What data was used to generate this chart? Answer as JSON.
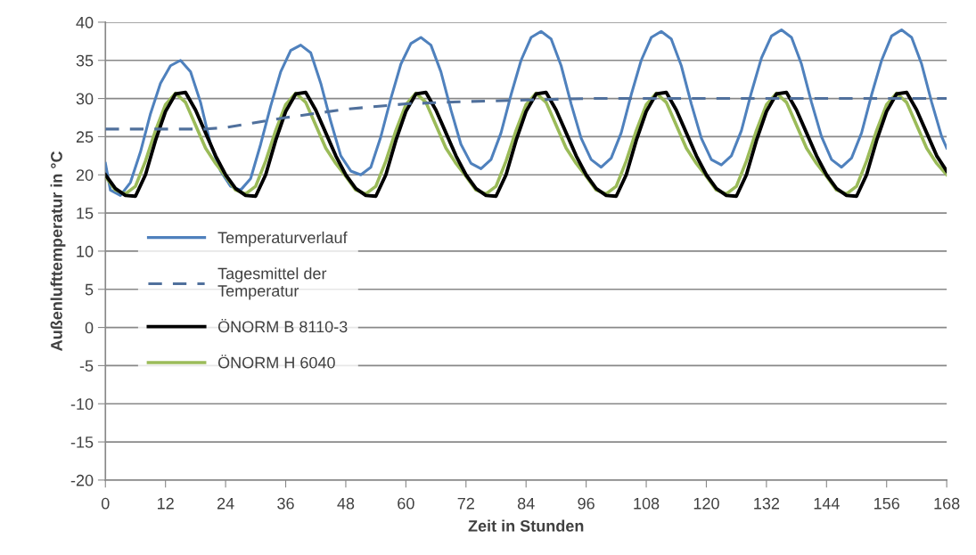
{
  "chart_data": {
    "type": "line",
    "xlabel": "Zeit in Stunden",
    "ylabel": "Außenlufttemperatur in °C",
    "xlim": [
      0,
      168
    ],
    "xticks": [
      0,
      12,
      24,
      36,
      48,
      60,
      72,
      84,
      96,
      108,
      120,
      132,
      144,
      156,
      168
    ],
    "ylim": [
      -20,
      40
    ],
    "yticks": [
      -20,
      -15,
      -10,
      -5,
      0,
      5,
      10,
      15,
      20,
      25,
      30,
      35,
      40
    ],
    "grid": "y",
    "legend": "center left",
    "marker": "none",
    "series": [
      {
        "name": "Temperaturverlauf",
        "color": "#4f81bd",
        "line_style": "solid",
        "x": [
          0,
          1,
          3,
          5,
          7,
          9,
          11,
          13,
          15,
          17,
          19,
          21,
          23,
          25,
          27,
          29,
          31,
          33,
          35,
          37,
          39,
          41,
          43,
          45,
          47,
          49,
          51,
          53,
          55,
          57,
          59,
          61,
          63,
          65,
          67,
          69,
          71,
          73,
          75,
          77,
          79,
          81,
          83,
          85,
          87,
          89,
          91,
          93,
          95,
          97,
          99,
          101,
          103,
          105,
          107,
          109,
          111,
          113,
          115,
          117,
          119,
          121,
          123,
          125,
          127,
          129,
          131,
          133,
          135,
          137,
          139,
          141,
          143,
          145,
          147,
          149,
          151,
          153,
          155,
          157,
          159,
          161,
          163,
          165,
          167,
          168
        ],
        "values": [
          21.5,
          18,
          17.3,
          19,
          23,
          28,
          32,
          34.3,
          35,
          33.5,
          29.5,
          24,
          20.5,
          18.5,
          18,
          19.5,
          24,
          29,
          33.5,
          36.3,
          37,
          36,
          32,
          27,
          22.5,
          20.5,
          20,
          21,
          25,
          30,
          34.5,
          37.2,
          38,
          37,
          33.5,
          28.5,
          24,
          21.5,
          20.8,
          22,
          25.5,
          30.5,
          35,
          38,
          38.8,
          37.8,
          34.3,
          29.3,
          24.8,
          22,
          21,
          22.2,
          25.5,
          30.5,
          35,
          38,
          38.8,
          37.8,
          34.3,
          29.3,
          24.8,
          22,
          21.3,
          22.5,
          25.8,
          30.8,
          35.3,
          38.2,
          39,
          38,
          34.5,
          29.5,
          25,
          22,
          21,
          22.2,
          25.5,
          30.5,
          35,
          38.2,
          39,
          38,
          34.5,
          29.5,
          25,
          23.5
        ]
      },
      {
        "name": "Tagesmittel der\nTemperatur",
        "color": "#50709c",
        "line_style": "dashed",
        "x": [
          0,
          20,
          24,
          36,
          48,
          60,
          72,
          84,
          96,
          168
        ],
        "values": [
          26,
          26,
          26.2,
          27.5,
          28.6,
          29.3,
          29.6,
          29.8,
          30,
          30
        ]
      },
      {
        "name": "ÖNORM B 8110-3",
        "color": "#000000",
        "line_style": "solid",
        "x": [
          0,
          2,
          4,
          6,
          8,
          10,
          12,
          14,
          16,
          18,
          20,
          22,
          24,
          26,
          28,
          30,
          32,
          34,
          36,
          38,
          40,
          42,
          44,
          46,
          48,
          50,
          52,
          54,
          56,
          58,
          60,
          62,
          64,
          66,
          68,
          70,
          72,
          74,
          76,
          78,
          80,
          82,
          84,
          86,
          88,
          90,
          92,
          94,
          96,
          98,
          100,
          102,
          104,
          106,
          108,
          110,
          112,
          114,
          116,
          118,
          120,
          122,
          124,
          126,
          128,
          130,
          132,
          134,
          136,
          138,
          140,
          142,
          144,
          146,
          148,
          150,
          152,
          154,
          156,
          158,
          160,
          162,
          164,
          166,
          168
        ],
        "values": [
          20,
          18.2,
          17.3,
          17.2,
          20,
          24.5,
          28.3,
          30.6,
          30.8,
          28.5,
          25.5,
          22.5,
          20,
          18.2,
          17.3,
          17.2,
          20,
          24.5,
          28.3,
          30.6,
          30.8,
          28.5,
          25.5,
          22.5,
          20,
          18.2,
          17.3,
          17.2,
          20,
          24.5,
          28.3,
          30.6,
          30.8,
          28.5,
          25.5,
          22.5,
          20,
          18.2,
          17.3,
          17.2,
          20,
          24.5,
          28.3,
          30.6,
          30.8,
          28.5,
          25.5,
          22.5,
          20,
          18.2,
          17.3,
          17.2,
          20,
          24.5,
          28.3,
          30.6,
          30.8,
          28.5,
          25.5,
          22.5,
          20,
          18.2,
          17.3,
          17.2,
          20,
          24.5,
          28.3,
          30.6,
          30.8,
          28.5,
          25.5,
          22.5,
          20,
          18.2,
          17.3,
          17.2,
          20,
          24.5,
          28.3,
          30.6,
          30.8,
          28.5,
          25.5,
          22.5,
          20.5
        ]
      },
      {
        "name": "ÖNORM H 6040",
        "color": "#9bbb59",
        "line_style": "solid",
        "x": [
          0,
          2,
          4,
          6,
          8,
          10,
          12,
          14,
          16,
          18,
          20,
          22,
          24,
          26,
          28,
          30,
          32,
          34,
          36,
          38,
          40,
          42,
          44,
          46,
          48,
          50,
          52,
          54,
          56,
          58,
          60,
          62,
          64,
          66,
          68,
          70,
          72,
          74,
          76,
          78,
          80,
          82,
          84,
          86,
          88,
          90,
          92,
          94,
          96,
          98,
          100,
          102,
          104,
          106,
          108,
          110,
          112,
          114,
          116,
          118,
          120,
          122,
          124,
          126,
          128,
          130,
          132,
          134,
          136,
          138,
          140,
          142,
          144,
          146,
          148,
          150,
          152,
          154,
          156,
          158,
          160,
          162,
          164,
          166,
          168
        ],
        "values": [
          19.8,
          18,
          17.5,
          18.5,
          21.8,
          25.8,
          29.2,
          30.7,
          29.5,
          26.5,
          23.5,
          21.5,
          19.8,
          18,
          17.5,
          18.5,
          21.8,
          25.8,
          29.2,
          30.7,
          29.5,
          26.5,
          23.5,
          21.5,
          19.8,
          18,
          17.5,
          18.5,
          21.8,
          25.8,
          29.2,
          30.7,
          29.5,
          26.5,
          23.5,
          21.5,
          19.8,
          18,
          17.5,
          18.5,
          21.8,
          25.8,
          29.2,
          30.7,
          29.5,
          26.5,
          23.5,
          21.5,
          19.8,
          18,
          17.5,
          18.5,
          21.8,
          25.8,
          29.2,
          30.7,
          29.5,
          26.5,
          23.5,
          21.5,
          19.8,
          18,
          17.5,
          18.5,
          21.8,
          25.8,
          29.2,
          30.7,
          29.5,
          26.5,
          23.5,
          21.5,
          19.8,
          18,
          17.5,
          18.5,
          21.8,
          25.8,
          29.2,
          30.7,
          29.5,
          26.5,
          23.5,
          21.5,
          20
        ]
      }
    ]
  }
}
